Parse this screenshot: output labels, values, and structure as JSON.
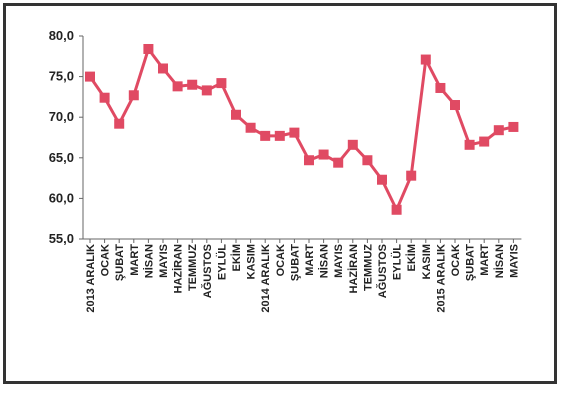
{
  "chart_data": {
    "type": "line",
    "title": "",
    "xlabel": "",
    "ylabel": "",
    "ylim": [
      55,
      80
    ],
    "yticks": [
      "80,0",
      "75,0",
      "70,0",
      "65,0",
      "60,0",
      "55,0"
    ],
    "ytick_values": [
      80,
      75,
      70,
      65,
      60,
      55
    ],
    "grid": false,
    "legend": "none",
    "categories": [
      "2013 ARALIK",
      "OCAK",
      "ŞUBAT",
      "MART",
      "NİSAN",
      "MAYIS",
      "HAZİRAN",
      "TEMMUZ",
      "AĞUSTOS",
      "EYLÜL",
      "EKİM",
      "KASIM",
      "2014 ARALIK",
      "OCAK",
      "ŞUBAT",
      "MART",
      "NİSAN",
      "MAYIS",
      "HAZİRAN",
      "TEMMUZ",
      "AĞUSTOS",
      "EYLÜL",
      "EKİM",
      "KASIM",
      "2015 ARALIK",
      "OCAK",
      "ŞUBAT",
      "MART",
      "NİSAN",
      "MAYIS"
    ],
    "series": [
      {
        "values": [
          75.0,
          72.4,
          69.2,
          72.7,
          78.4,
          76.0,
          73.8,
          74.0,
          73.3,
          74.2,
          70.3,
          68.7,
          67.7,
          67.7,
          68.1,
          64.7,
          65.4,
          64.4,
          66.6,
          64.7,
          62.3,
          58.6,
          62.8,
          77.1,
          73.6,
          71.5,
          66.6,
          67.0,
          68.4,
          68.8
        ]
      }
    ],
    "colors": {
      "line": "#e04a63",
      "marker": "#e04a63",
      "axis": "#666666",
      "frame": "#333333"
    }
  }
}
